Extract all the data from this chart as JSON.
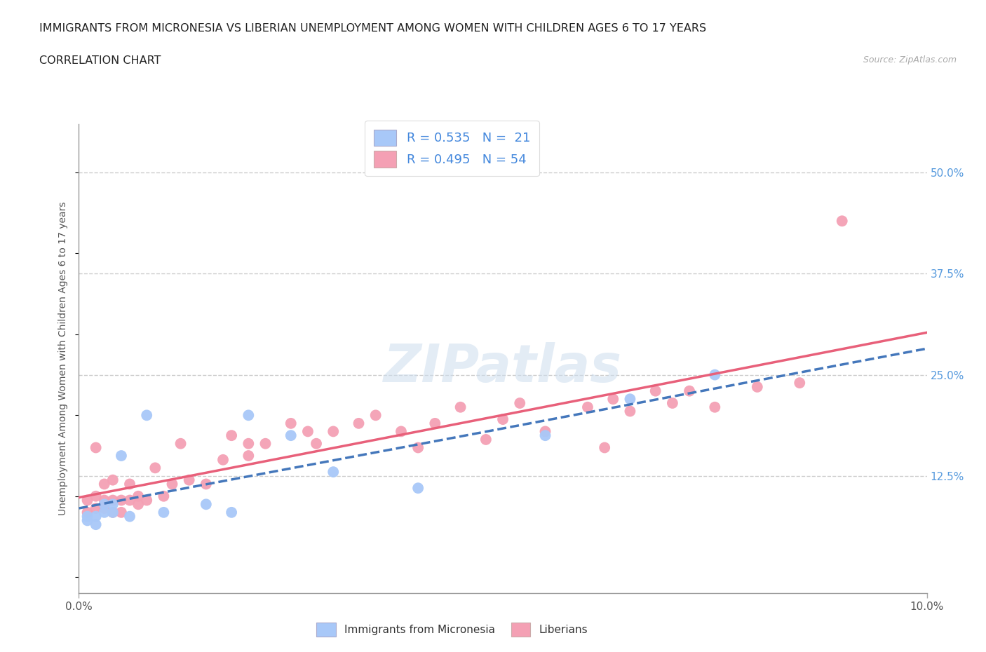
{
  "title": "IMMIGRANTS FROM MICRONESIA VS LIBERIAN UNEMPLOYMENT AMONG WOMEN WITH CHILDREN AGES 6 TO 17 YEARS",
  "subtitle": "CORRELATION CHART",
  "source": "Source: ZipAtlas.com",
  "ylabel": "Unemployment Among Women with Children Ages 6 to 17 years",
  "xlim": [
    0.0,
    0.1
  ],
  "ylim": [
    -0.02,
    0.56
  ],
  "ytick_labels": [
    "12.5%",
    "25.0%",
    "37.5%",
    "50.0%"
  ],
  "ytick_values": [
    0.125,
    0.25,
    0.375,
    0.5
  ],
  "watermark": "ZIPatlas",
  "micronesia_color": "#a8c8f8",
  "liberian_color": "#f4a0b4",
  "micronesia_line_color": "#4477bb",
  "liberian_line_color": "#e8607a",
  "legend_r_micro": "R = 0.535",
  "legend_n_micro": "N =  21",
  "legend_r_lib": "R = 0.495",
  "legend_n_lib": "N = 54",
  "micronesia_x": [
    0.001,
    0.001,
    0.002,
    0.002,
    0.003,
    0.003,
    0.004,
    0.004,
    0.005,
    0.006,
    0.008,
    0.01,
    0.015,
    0.018,
    0.02,
    0.025,
    0.03,
    0.04,
    0.055,
    0.065,
    0.075
  ],
  "micronesia_y": [
    0.07,
    0.075,
    0.065,
    0.075,
    0.08,
    0.09,
    0.08,
    0.09,
    0.15,
    0.075,
    0.2,
    0.08,
    0.09,
    0.08,
    0.2,
    0.175,
    0.13,
    0.11,
    0.175,
    0.22,
    0.25
  ],
  "liberian_x": [
    0.001,
    0.001,
    0.002,
    0.002,
    0.002,
    0.003,
    0.003,
    0.003,
    0.004,
    0.004,
    0.004,
    0.005,
    0.005,
    0.006,
    0.006,
    0.007,
    0.007,
    0.008,
    0.009,
    0.01,
    0.011,
    0.012,
    0.013,
    0.015,
    0.017,
    0.018,
    0.02,
    0.02,
    0.022,
    0.025,
    0.027,
    0.028,
    0.03,
    0.033,
    0.035,
    0.038,
    0.04,
    0.042,
    0.045,
    0.048,
    0.05,
    0.052,
    0.055,
    0.06,
    0.062,
    0.063,
    0.065,
    0.068,
    0.07,
    0.072,
    0.075,
    0.08,
    0.085,
    0.09
  ],
  "liberian_y": [
    0.08,
    0.095,
    0.085,
    0.1,
    0.16,
    0.085,
    0.095,
    0.115,
    0.08,
    0.095,
    0.12,
    0.08,
    0.095,
    0.095,
    0.115,
    0.09,
    0.1,
    0.095,
    0.135,
    0.1,
    0.115,
    0.165,
    0.12,
    0.115,
    0.145,
    0.175,
    0.15,
    0.165,
    0.165,
    0.19,
    0.18,
    0.165,
    0.18,
    0.19,
    0.2,
    0.18,
    0.16,
    0.19,
    0.21,
    0.17,
    0.195,
    0.215,
    0.18,
    0.21,
    0.16,
    0.22,
    0.205,
    0.23,
    0.215,
    0.23,
    0.21,
    0.235,
    0.24,
    0.44
  ]
}
